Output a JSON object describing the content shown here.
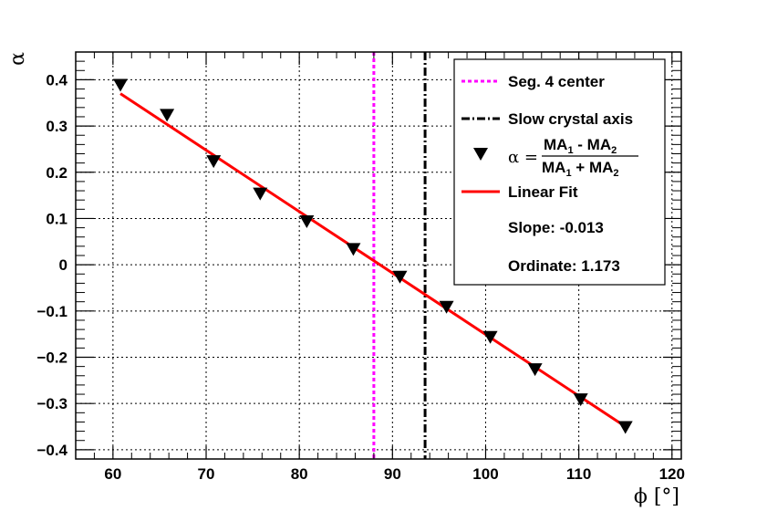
{
  "chart_data": {
    "type": "scatter",
    "xlabel": "ϕ [°]",
    "ylabel": "α",
    "xlim": [
      56,
      121
    ],
    "ylim": [
      -0.42,
      0.46
    ],
    "grid": true,
    "legend_position": "top-right",
    "x_ticks": [
      60,
      70,
      80,
      90,
      100,
      110,
      120
    ],
    "y_ticks": [
      0.4,
      0.3,
      0.2,
      0.1,
      0,
      -0.1,
      -0.2,
      -0.3,
      -0.4
    ],
    "x_tick_labels": [
      "60",
      "70",
      "80",
      "90",
      "100",
      "110",
      "120"
    ],
    "y_tick_labels": [
      "0.4",
      "0.3",
      "0.2",
      "0.1",
      "0",
      "−0.1",
      "−0.2",
      "−0.3",
      "−0.4"
    ],
    "series": [
      {
        "name": "α = (MA1 - MA2)/(MA1 + MA2)",
        "kind": "points",
        "marker": "inverted-triangle",
        "color": "#000000",
        "x": [
          60.8,
          65.8,
          70.8,
          75.8,
          80.8,
          85.8,
          90.8,
          95.8,
          100.5,
          105.3,
          110.2,
          115.0
        ],
        "y": [
          0.39,
          0.325,
          0.225,
          0.155,
          0.095,
          0.035,
          -0.025,
          -0.09,
          -0.155,
          -0.225,
          -0.29,
          -0.35
        ]
      },
      {
        "name": "Linear Fit",
        "kind": "line",
        "color": "#ff0000",
        "x": [
          60.8,
          115.0
        ],
        "y": [
          0.37,
          -0.35
        ]
      }
    ],
    "vertical_lines": [
      {
        "name": "Seg. 4 center",
        "x": 88.0,
        "color": "#ff00ff",
        "style": "dotted"
      },
      {
        "name": "Slow crystal axis",
        "x": 93.5,
        "color": "#000000",
        "style": "dashdot"
      }
    ],
    "legend": {
      "seg_center": "Seg. 4 center",
      "slow_axis": "Slow crystal axis",
      "alpha_symbol": "α =",
      "num_ma1": "MA",
      "num_sub1": "1",
      "num_minus": " - MA",
      "num_sub2": "2",
      "den_ma1": "MA",
      "den_sub1": "1",
      "den_plus": " + MA",
      "den_sub2": "2",
      "linear_fit": "Linear Fit",
      "slope": "Slope: -0.013",
      "ordinate": "Ordinate: 1.173"
    }
  }
}
